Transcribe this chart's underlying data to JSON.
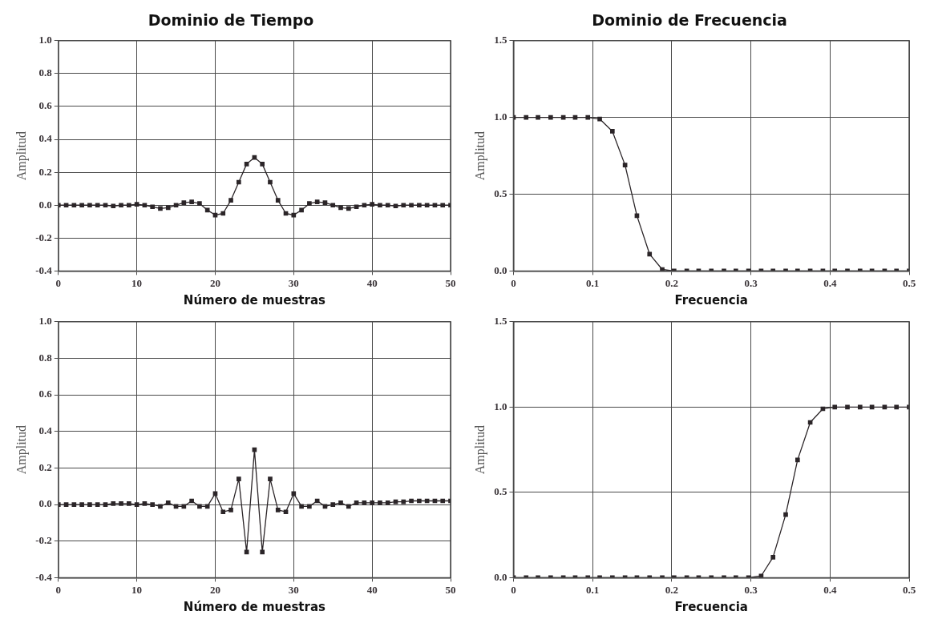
{
  "chart_data": [
    {
      "type": "line",
      "title": "Dominio de Tiempo",
      "xlabel": "Número de muestras",
      "ylabel": "Amplitud",
      "marker": "square",
      "line_style": "solid",
      "grid": true,
      "x": [
        0,
        1,
        2,
        3,
        4,
        5,
        6,
        7,
        8,
        9,
        10,
        11,
        12,
        13,
        14,
        15,
        16,
        17,
        18,
        19,
        20,
        21,
        22,
        23,
        24,
        25,
        26,
        27,
        28,
        29,
        30,
        31,
        32,
        33,
        34,
        35,
        36,
        37,
        38,
        39,
        40,
        41,
        42,
        43,
        44,
        45,
        46,
        47,
        48,
        49,
        50
      ],
      "series": [
        {
          "color": "#2b2528",
          "values": [
            0,
            0,
            0,
            0,
            0,
            0,
            0,
            -0.005,
            0,
            0,
            0.005,
            0,
            -0.01,
            -0.02,
            -0.015,
            0,
            0.015,
            0.02,
            0.01,
            -0.03,
            -0.06,
            -0.05,
            0.03,
            0.14,
            0.25,
            0.29,
            0.25,
            0.14,
            0.03,
            -0.05,
            -0.06,
            -0.03,
            0.01,
            0.02,
            0.015,
            0,
            -0.015,
            -0.02,
            -0.01,
            0,
            0.005,
            0,
            0,
            -0.005,
            0,
            0,
            0,
            0,
            0,
            0,
            0
          ]
        }
      ],
      "xlim": [
        0,
        50
      ],
      "xticks": [
        0,
        10,
        20,
        30,
        40,
        50
      ],
      "ylim": [
        -0.4,
        1
      ],
      "yticks": [
        {
          "value": -0.4,
          "label": "-0.4"
        },
        {
          "value": -0.2,
          "label": "-0.2"
        },
        {
          "value": 0,
          "label": "0.0"
        },
        {
          "value": 0.2,
          "label": "0.2"
        },
        {
          "value": 0.4,
          "label": "0.4"
        },
        {
          "value": 0.6,
          "label": "0.6"
        },
        {
          "value": 0.8,
          "label": "0.8"
        },
        {
          "value": 1,
          "label": "1.0"
        }
      ]
    },
    {
      "type": "line",
      "title": "Dominio de Frecuencia",
      "xlabel": "Frecuencia",
      "ylabel": "Amplitud",
      "marker": "square",
      "line_style": "solid",
      "grid": true,
      "x": [
        0,
        0.016,
        0.031,
        0.047,
        0.063,
        0.078,
        0.094,
        0.109,
        0.125,
        0.141,
        0.156,
        0.172,
        0.188,
        0.203,
        0.219,
        0.234,
        0.25,
        0.266,
        0.281,
        0.297,
        0.313,
        0.328,
        0.344,
        0.359,
        0.375,
        0.391,
        0.406,
        0.422,
        0.438,
        0.453,
        0.469,
        0.484,
        0.5
      ],
      "series": [
        {
          "color": "#2b2528",
          "values": [
            1,
            1,
            1,
            1,
            1,
            1,
            1,
            0.99,
            0.91,
            0.69,
            0.36,
            0.11,
            0.01,
            0,
            0,
            0,
            0,
            0,
            0,
            0,
            0,
            0,
            0,
            0,
            0,
            0,
            0,
            0,
            0,
            0,
            0,
            0,
            0
          ]
        }
      ],
      "xlim": [
        0,
        0.5
      ],
      "xticks": [
        0,
        0.1,
        0.2,
        0.3,
        0.4,
        0.5
      ],
      "ylim": [
        0,
        1.5
      ],
      "yticks": [
        {
          "value": 0,
          "label": "0.0"
        },
        {
          "value": 0.5,
          "label": "0.5"
        },
        {
          "value": 1,
          "label": "1.0"
        },
        {
          "value": 1.5,
          "label": "1.5"
        }
      ]
    },
    {
      "type": "line",
      "xlabel": "Número de muestras",
      "ylabel": "Amplitud",
      "marker": "square",
      "line_style": "solid",
      "grid": true,
      "x": [
        0,
        1,
        2,
        3,
        4,
        5,
        6,
        7,
        8,
        9,
        10,
        11,
        12,
        13,
        14,
        15,
        16,
        17,
        18,
        19,
        20,
        21,
        22,
        23,
        24,
        25,
        26,
        27,
        28,
        29,
        30,
        31,
        32,
        33,
        34,
        35,
        36,
        37,
        38,
        39,
        40,
        41,
        42,
        43,
        44,
        45,
        46,
        47,
        48,
        49,
        50
      ],
      "series": [
        {
          "color": "#2b2528",
          "values": [
            0,
            0,
            0,
            0,
            0,
            0,
            0,
            0.005,
            0.005,
            0.005,
            0,
            0.005,
            0,
            -0.01,
            0.01,
            -0.01,
            -0.01,
            0.02,
            -0.01,
            -0.01,
            0.06,
            -0.04,
            -0.03,
            0.14,
            -0.26,
            0.3,
            -0.26,
            0.14,
            -0.03,
            -0.04,
            0.06,
            -0.01,
            -0.01,
            0.02,
            -0.01,
            0,
            0.01,
            -0.01,
            0.01,
            0.01,
            0.01,
            0.01,
            0.01,
            0.015,
            0.015,
            0.02,
            0.02,
            0.02,
            0.02,
            0.02,
            0.02
          ]
        }
      ],
      "xlim": [
        0,
        50
      ],
      "xticks": [
        0,
        10,
        20,
        30,
        40,
        50
      ],
      "ylim": [
        -0.4,
        1
      ],
      "yticks": [
        {
          "value": -0.4,
          "label": "-0.4"
        },
        {
          "value": -0.2,
          "label": "-0.2"
        },
        {
          "value": 0,
          "label": "0.0"
        },
        {
          "value": 0.2,
          "label": "0.2"
        },
        {
          "value": 0.4,
          "label": "0.4"
        },
        {
          "value": 0.6,
          "label": "0.6"
        },
        {
          "value": 0.8,
          "label": "0.8"
        },
        {
          "value": 1,
          "label": "1.0"
        }
      ]
    },
    {
      "type": "line",
      "xlabel": "Frecuencia",
      "ylabel": "Amplitud",
      "marker": "square",
      "line_style": "solid",
      "grid": true,
      "x": [
        0,
        0.016,
        0.031,
        0.047,
        0.063,
        0.078,
        0.094,
        0.109,
        0.125,
        0.141,
        0.156,
        0.172,
        0.188,
        0.203,
        0.219,
        0.234,
        0.25,
        0.266,
        0.281,
        0.297,
        0.313,
        0.328,
        0.344,
        0.359,
        0.375,
        0.391,
        0.406,
        0.422,
        0.438,
        0.453,
        0.469,
        0.484,
        0.5
      ],
      "series": [
        {
          "color": "#2b2528",
          "values": [
            0,
            0,
            0,
            0,
            0,
            0,
            0,
            0,
            0,
            0,
            0,
            0,
            0,
            0,
            0,
            0,
            0,
            0,
            0,
            0,
            0.01,
            0.12,
            0.37,
            0.69,
            0.91,
            0.99,
            1,
            1,
            1,
            1,
            1,
            1,
            1
          ]
        }
      ],
      "xlim": [
        0,
        0.5
      ],
      "xticks": [
        0,
        0.1,
        0.2,
        0.3,
        0.4,
        0.5
      ],
      "ylim": [
        0,
        1.5
      ],
      "yticks": [
        {
          "value": 0,
          "label": "0.0"
        },
        {
          "value": 0.5,
          "label": "0.5"
        },
        {
          "value": 1,
          "label": "1.0"
        },
        {
          "value": 1.5,
          "label": "1.5"
        }
      ]
    }
  ]
}
